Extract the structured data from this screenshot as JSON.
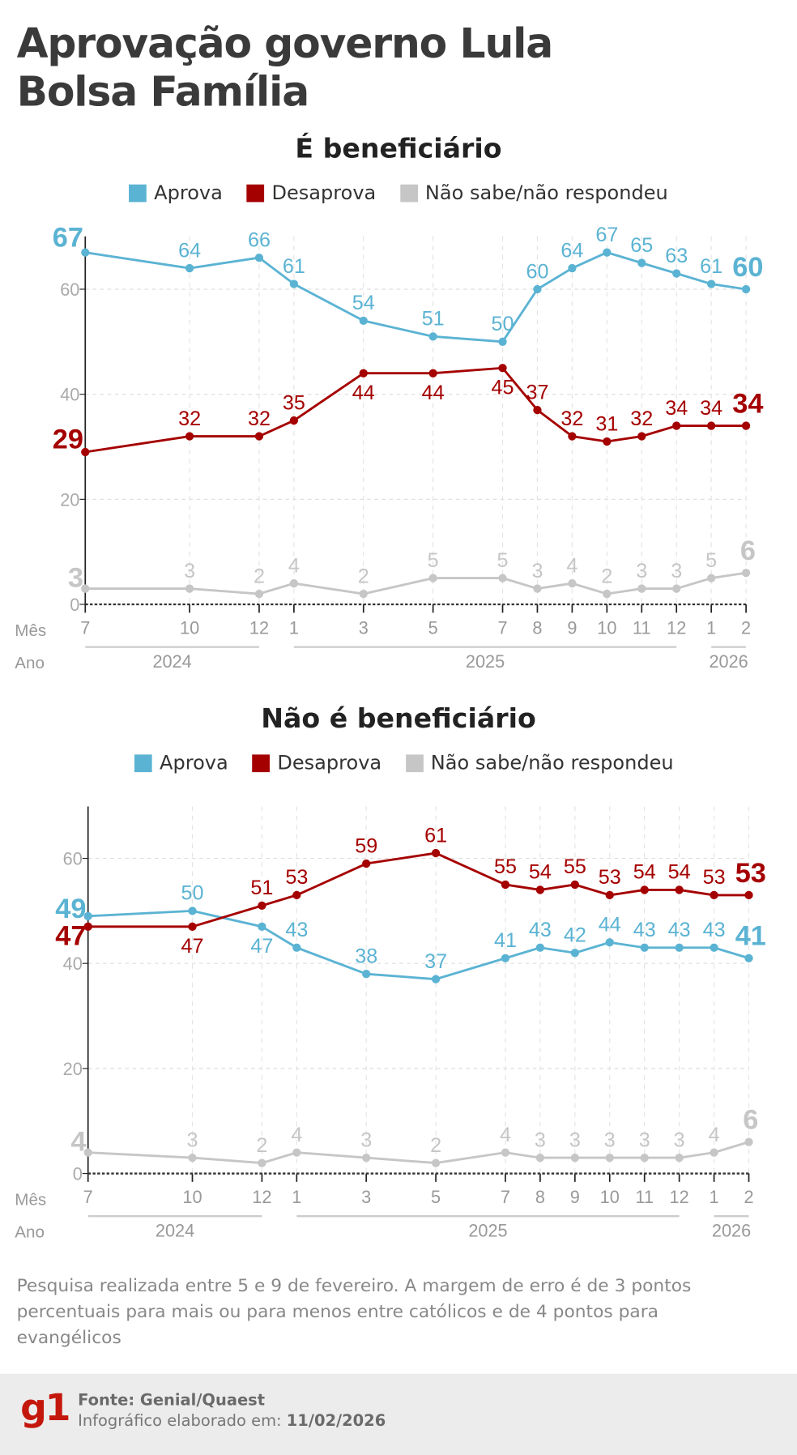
{
  "header": {
    "title_line1": "Aprovação governo Lula",
    "title_line2": "Bolsa Família"
  },
  "legend": [
    {
      "label": "Aprova",
      "color": "#5bb3d3"
    },
    {
      "label": "Desaprova",
      "color": "#a50000"
    },
    {
      "label": "Não sabe/não respondeu",
      "color": "#c6c6c6"
    }
  ],
  "axis_labels": {
    "month_row": "Mês",
    "year_row": "Ano"
  },
  "chart_data": [
    {
      "type": "line",
      "title": "É beneficiário",
      "x_months": [
        "7",
        "10",
        "12",
        "1",
        "3",
        "5",
        "7",
        "8",
        "9",
        "10",
        "11",
        "12",
        "1",
        "2"
      ],
      "x_years": [
        {
          "label": "2024",
          "from": 0,
          "to": 2
        },
        {
          "label": "2025",
          "from": 3,
          "to": 11
        },
        {
          "label": "2026",
          "from": 12,
          "to": 13
        }
      ],
      "x": [
        "2024-07",
        "2024-10",
        "2024-12",
        "2025-01",
        "2025-03",
        "2025-05",
        "2025-07",
        "2025-08",
        "2025-09",
        "2025-10",
        "2025-11",
        "2025-12",
        "2026-01",
        "2026-02"
      ],
      "y_ticks": [
        0,
        20,
        40,
        60
      ],
      "ylim": [
        0,
        70
      ],
      "grid": true,
      "series": [
        {
          "name": "Aprova",
          "color": "#5bb3d3",
          "values": [
            67,
            64,
            66,
            61,
            54,
            51,
            50,
            60,
            64,
            67,
            65,
            63,
            61,
            60
          ]
        },
        {
          "name": "Desaprova",
          "color": "#a50000",
          "values": [
            29,
            32,
            32,
            35,
            44,
            44,
            45,
            37,
            32,
            31,
            32,
            34,
            34,
            34
          ]
        },
        {
          "name": "Não sabe/não respondeu",
          "color": "#c6c6c6",
          "values": [
            3,
            3,
            2,
            4,
            2,
            5,
            5,
            3,
            4,
            2,
            3,
            3,
            5,
            6
          ]
        }
      ]
    },
    {
      "type": "line",
      "title": "Não é beneficiário",
      "x_months": [
        "7",
        "10",
        "12",
        "1",
        "3",
        "5",
        "7",
        "8",
        "9",
        "10",
        "11",
        "12",
        "1",
        "2"
      ],
      "x_years": [
        {
          "label": "2024",
          "from": 0,
          "to": 2
        },
        {
          "label": "2025",
          "from": 3,
          "to": 11
        },
        {
          "label": "2026",
          "from": 12,
          "to": 13
        }
      ],
      "x": [
        "2024-07",
        "2024-10",
        "2024-12",
        "2025-01",
        "2025-03",
        "2025-05",
        "2025-07",
        "2025-08",
        "2025-09",
        "2025-10",
        "2025-11",
        "2025-12",
        "2026-01",
        "2026-02"
      ],
      "y_ticks": [
        0,
        20,
        40,
        60
      ],
      "ylim": [
        0,
        70
      ],
      "grid": true,
      "series": [
        {
          "name": "Aprova",
          "color": "#5bb3d3",
          "values": [
            49,
            50,
            47,
            43,
            38,
            37,
            41,
            43,
            42,
            44,
            43,
            43,
            43,
            41
          ]
        },
        {
          "name": "Desaprova",
          "color": "#a50000",
          "values": [
            47,
            47,
            51,
            53,
            59,
            61,
            55,
            54,
            55,
            53,
            54,
            54,
            53,
            53
          ]
        },
        {
          "name": "Não sabe/não respondeu",
          "color": "#c6c6c6",
          "values": [
            4,
            3,
            2,
            4,
            3,
            2,
            4,
            3,
            3,
            3,
            3,
            3,
            4,
            6
          ]
        }
      ]
    }
  ],
  "note": "Pesquisa realizada entre 5 e 9 de fevereiro. A margem de erro é de 3 pontos percentuais para mais ou para menos entre católicos e de 4 pontos para evangélicos",
  "footer": {
    "logo": "g1",
    "source": "Fonte: Genial/Quaest",
    "made_label": "Infográfico elaborado em:",
    "made_date": "11/02/2026"
  }
}
